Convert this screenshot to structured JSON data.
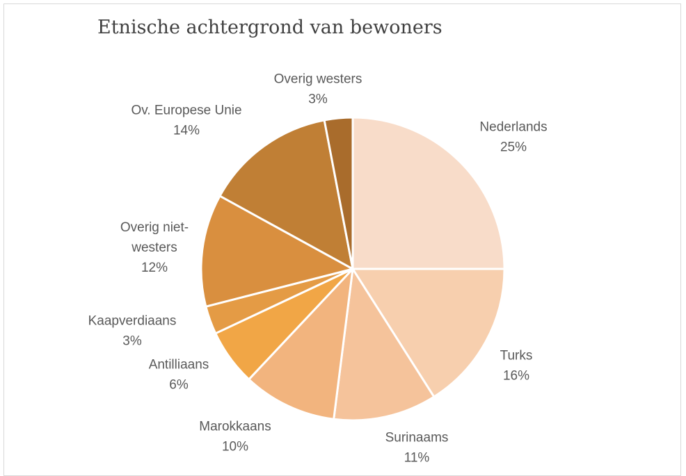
{
  "chart_data": {
    "type": "pie",
    "title": "Etnische achtergrond van bewoners",
    "slices": [
      {
        "label_lines": [
          "Nederlands"
        ],
        "value": 25,
        "pct_label": "25%",
        "color": "#f8dcc9"
      },
      {
        "label_lines": [
          "Turks"
        ],
        "value": 16,
        "pct_label": "16%",
        "color": "#f7cfae"
      },
      {
        "label_lines": [
          "Surinaams"
        ],
        "value": 11,
        "pct_label": "11%",
        "color": "#f5c39b"
      },
      {
        "label_lines": [
          "Marokkaans"
        ],
        "value": 10,
        "pct_label": "10%",
        "color": "#f2b47e"
      },
      {
        "label_lines": [
          "Antilliaans"
        ],
        "value": 6,
        "pct_label": "6%",
        "color": "#f1a646"
      },
      {
        "label_lines": [
          "Kaapverdiaans"
        ],
        "value": 3,
        "pct_label": "3%",
        "color": "#e49b45"
      },
      {
        "label_lines": [
          "Overig niet-",
          "westers"
        ],
        "value": 12,
        "pct_label": "12%",
        "color": "#d98f3f"
      },
      {
        "label_lines": [
          "Ov. Europese Unie"
        ],
        "value": 14,
        "pct_label": "14%",
        "color": "#c07f35"
      },
      {
        "label_lines": [
          "Overig westers"
        ],
        "value": 3,
        "pct_label": "3%",
        "color": "#a96c2c"
      }
    ]
  }
}
